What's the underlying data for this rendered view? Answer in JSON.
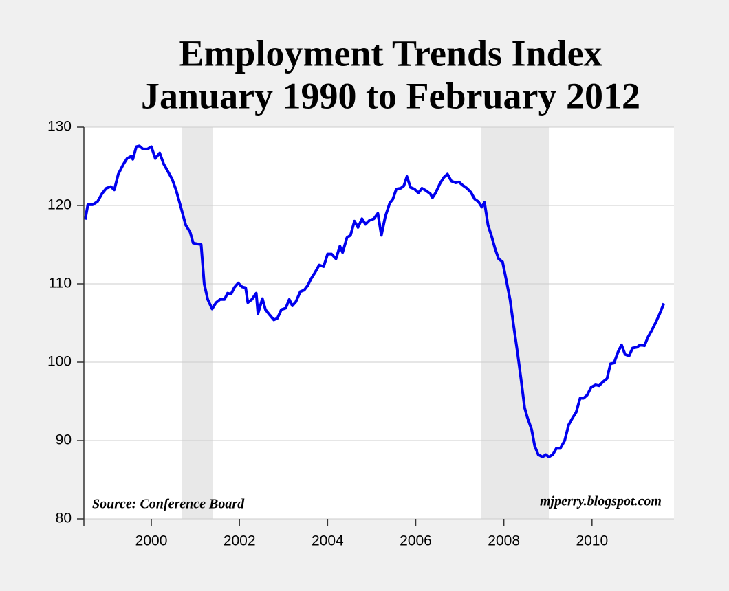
{
  "chart_data": {
    "type": "line",
    "title": "Employment Trends Index",
    "subtitle": "January 1990 to February 2012",
    "annotations": [
      "Source: Conference Board",
      "mjperry.blogspot.com"
    ],
    "xlim": [
      1998.47,
      2011.86
    ],
    "xticks": [
      2000,
      2002,
      2004,
      2006,
      2008,
      2010
    ],
    "ylim": [
      80,
      130
    ],
    "yticks": [
      80,
      90,
      100,
      110,
      120,
      130
    ],
    "grid": true,
    "recessions": [
      [
        2000.7,
        2001.39
      ],
      [
        2007.48,
        2009.02
      ]
    ],
    "recession_color": "#e8e8e8",
    "x": [
      1998.5,
      1998.56,
      1998.67,
      1998.78,
      1998.88,
      1998.98,
      1999.08,
      1999.16,
      1999.25,
      1999.36,
      1999.45,
      1999.55,
      1999.58,
      1999.66,
      1999.73,
      1999.81,
      1999.91,
      2000.0,
      2000.09,
      2000.19,
      2000.28,
      2000.38,
      2000.47,
      2000.56,
      2000.66,
      2000.78,
      2000.88,
      2000.95,
      2001.13,
      2001.2,
      2001.28,
      2001.38,
      2001.47,
      2001.56,
      2001.66,
      2001.73,
      2001.81,
      2001.88,
      2001.97,
      2002.06,
      2002.14,
      2002.19,
      2002.28,
      2002.38,
      2002.42,
      2002.52,
      2002.59,
      2002.69,
      2002.78,
      2002.86,
      2002.95,
      2003.05,
      2003.13,
      2003.2,
      2003.28,
      2003.38,
      2003.47,
      2003.55,
      2003.63,
      2003.72,
      2003.81,
      2003.91,
      2004.0,
      2004.09,
      2004.19,
      2004.28,
      2004.34,
      2004.44,
      2004.52,
      2004.61,
      2004.69,
      2004.78,
      2004.86,
      2004.95,
      2005.05,
      2005.14,
      2005.22,
      2005.31,
      2005.41,
      2005.48,
      2005.56,
      2005.66,
      2005.73,
      2005.8,
      2005.88,
      2005.97,
      2006.06,
      2006.14,
      2006.23,
      2006.33,
      2006.38,
      2006.45,
      2006.55,
      2006.64,
      2006.72,
      2006.81,
      2006.91,
      2006.98,
      2007.06,
      2007.16,
      2007.25,
      2007.34,
      2007.42,
      2007.5,
      2007.56,
      2007.64,
      2007.72,
      2007.8,
      2007.88,
      2007.97,
      2008.05,
      2008.14,
      2008.22,
      2008.31,
      2008.39,
      2008.47,
      2008.53,
      2008.63,
      2008.7,
      2008.78,
      2008.88,
      2008.95,
      2009.02,
      2009.11,
      2009.19,
      2009.28,
      2009.38,
      2009.47,
      2009.56,
      2009.64,
      2009.73,
      2009.81,
      2009.89,
      2009.98,
      2010.08,
      2010.16,
      2010.25,
      2010.34,
      2010.42,
      2010.5,
      2010.59,
      2010.67,
      2010.75,
      2010.84,
      2010.92,
      2011.02,
      2011.09,
      2011.19,
      2011.27,
      2011.36,
      2011.44,
      2011.53,
      2011.63
    ],
    "series": [
      {
        "name": "Employment Trends Index",
        "color": "#0000ee",
        "values": [
          118.2,
          120.1,
          120.1,
          120.5,
          121.5,
          122.2,
          122.4,
          122.0,
          124.0,
          125.2,
          126.0,
          126.3,
          125.9,
          127.5,
          127.6,
          127.2,
          127.2,
          127.5,
          126.0,
          126.7,
          125.3,
          124.3,
          123.4,
          122.0,
          120.0,
          117.5,
          116.6,
          115.2,
          115.0,
          110.0,
          108.0,
          106.8,
          107.6,
          108.0,
          108.0,
          108.8,
          108.7,
          109.5,
          110.1,
          109.6,
          109.5,
          107.6,
          108.0,
          108.8,
          106.2,
          108.1,
          106.7,
          106.0,
          105.4,
          105.6,
          106.7,
          106.9,
          108.0,
          107.2,
          107.7,
          109.0,
          109.2,
          109.8,
          110.7,
          111.5,
          112.4,
          112.2,
          113.8,
          113.8,
          113.2,
          114.8,
          114.0,
          115.9,
          116.2,
          118.0,
          117.2,
          118.3,
          117.6,
          118.1,
          118.3,
          119.0,
          116.2,
          118.6,
          120.3,
          120.8,
          122.1,
          122.2,
          122.5,
          123.7,
          122.3,
          122.1,
          121.6,
          122.2,
          121.9,
          121.5,
          121.0,
          121.6,
          122.8,
          123.6,
          124.0,
          123.1,
          122.9,
          123.0,
          122.6,
          122.2,
          121.7,
          120.8,
          120.5,
          119.8,
          120.4,
          117.5,
          116.1,
          114.5,
          113.2,
          112.8,
          110.6,
          108.0,
          104.7,
          101.2,
          97.8,
          94.2,
          93.0,
          91.4,
          89.3,
          88.2,
          87.9,
          88.2,
          87.9,
          88.2,
          89.0,
          89.0,
          90.0,
          92.0,
          92.9,
          93.6,
          95.4,
          95.4,
          95.8,
          96.8,
          97.1,
          97.0,
          97.5,
          97.9,
          99.8,
          99.9,
          101.3,
          102.2,
          101.0,
          100.8,
          101.8,
          101.9,
          102.2,
          102.1,
          103.2,
          104.1,
          105.0,
          106.1,
          107.5
        ]
      }
    ]
  }
}
